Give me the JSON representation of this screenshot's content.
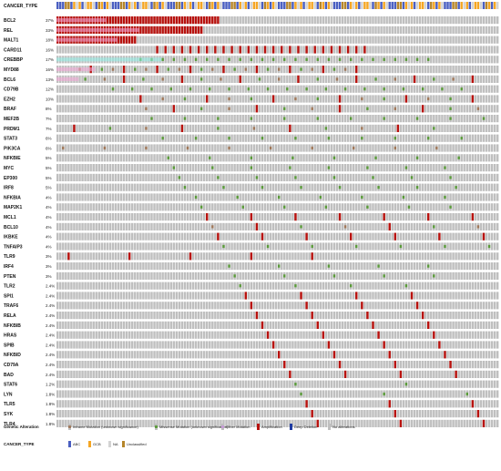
{
  "chart_data": {
    "type": "heatmap",
    "title": "",
    "annotation_track": {
      "label": "CANCER_TYPE",
      "categories": [
        "ABC",
        "GCB",
        "NA",
        "Unclassified"
      ],
      "pattern": "mixed ABC / GCB / NA / Unclassified per sample"
    },
    "n_samples": 160,
    "genes": [
      {
        "name": "BCL2",
        "pct": "37%",
        "altered": 59,
        "type": "amplification",
        "start": 0,
        "stride": 1
      },
      {
        "name": "REL",
        "pct": "33%",
        "altered": 53,
        "type": "amplification",
        "start": 0,
        "stride": 1
      },
      {
        "name": "MALT1",
        "pct": "18%",
        "altered": 29,
        "type": "amplification",
        "start": 0,
        "stride": 1
      },
      {
        "name": "CARD11",
        "pct": "16%",
        "altered": 26,
        "type": "mixed",
        "start": 36,
        "stride": 3
      },
      {
        "name": "CREBBP",
        "pct": "17%",
        "altered": 27,
        "type": "missense",
        "start": 30,
        "stride": 4
      },
      {
        "name": "MYD88",
        "pct": "16%",
        "altered": 26,
        "type": "mixed",
        "start": 8,
        "stride": 4
      },
      {
        "name": "BCL6",
        "pct": "13%",
        "altered": 21,
        "type": "mixed",
        "start": 10,
        "stride": 7
      },
      {
        "name": "CD79B",
        "pct": "12%",
        "altered": 19,
        "type": "missense",
        "start": 20,
        "stride": 7
      },
      {
        "name": "EZH2",
        "pct": "10%",
        "altered": 16,
        "type": "mixed",
        "start": 30,
        "stride": 8
      },
      {
        "name": "BRAF",
        "pct": "8%",
        "altered": 13,
        "type": "mixed",
        "start": 32,
        "stride": 10
      },
      {
        "name": "MEF2B",
        "pct": "7%",
        "altered": 11,
        "type": "missense",
        "start": 34,
        "stride": 12
      },
      {
        "name": "PRDM1",
        "pct": "7%",
        "altered": 11,
        "type": "mixed",
        "start": 6,
        "stride": 13
      },
      {
        "name": "STAT3",
        "pct": "6%",
        "altered": 10,
        "type": "missense",
        "start": 38,
        "stride": 12
      },
      {
        "name": "PIK3CA",
        "pct": "6%",
        "altered": 10,
        "type": "mixed",
        "start": 2,
        "stride": 15
      },
      {
        "name": "NFKBIE",
        "pct": "5%",
        "altered": 8,
        "type": "mixed",
        "start": 40,
        "stride": 15
      },
      {
        "name": "MYC",
        "pct": "5%",
        "altered": 8,
        "type": "missense",
        "start": 42,
        "stride": 14
      },
      {
        "name": "EP300",
        "pct": "5%",
        "altered": 8,
        "type": "missense",
        "start": 44,
        "stride": 14
      },
      {
        "name": "IRF8",
        "pct": "5%",
        "altered": 8,
        "type": "missense",
        "start": 46,
        "stride": 14
      },
      {
        "name": "NFKBIA",
        "pct": "4%",
        "altered": 7,
        "type": "missense",
        "start": 50,
        "stride": 15
      },
      {
        "name": "MAP2K1",
        "pct": "4%",
        "altered": 7,
        "type": "mixed",
        "start": 52,
        "stride": 15
      },
      {
        "name": "MCL1",
        "pct": "4%",
        "altered": 7,
        "type": "amplification",
        "start": 54,
        "stride": 16
      },
      {
        "name": "BCL10",
        "pct": "4%",
        "altered": 7,
        "type": "mixed",
        "start": 56,
        "stride": 16
      },
      {
        "name": "IKBKE",
        "pct": "4%",
        "altered": 7,
        "type": "amplification",
        "start": 58,
        "stride": 16
      },
      {
        "name": "TNFAIP3",
        "pct": "4%",
        "altered": 7,
        "type": "missense",
        "start": 60,
        "stride": 16
      },
      {
        "name": "TLR9",
        "pct": "3%",
        "altered": 5,
        "type": "amplification",
        "start": 4,
        "stride": 22
      },
      {
        "name": "IRF4",
        "pct": "3%",
        "altered": 5,
        "type": "missense",
        "start": 62,
        "stride": 18
      },
      {
        "name": "PTEN",
        "pct": "3%",
        "altered": 5,
        "type": "missense",
        "start": 64,
        "stride": 18
      },
      {
        "name": "TLR2",
        "pct": "2.4%",
        "altered": 4,
        "type": "missense",
        "start": 66,
        "stride": 20
      },
      {
        "name": "SPI1",
        "pct": "2.4%",
        "altered": 4,
        "type": "amplification",
        "start": 68,
        "stride": 20
      },
      {
        "name": "TRAF6",
        "pct": "2.4%",
        "altered": 4,
        "type": "amplification",
        "start": 70,
        "stride": 20
      },
      {
        "name": "RELA",
        "pct": "2.4%",
        "altered": 4,
        "type": "amplification",
        "start": 72,
        "stride": 20
      },
      {
        "name": "NFKBIB",
        "pct": "2.4%",
        "altered": 4,
        "type": "amplification",
        "start": 74,
        "stride": 20
      },
      {
        "name": "HRAS",
        "pct": "2.4%",
        "altered": 4,
        "type": "amplification",
        "start": 76,
        "stride": 20
      },
      {
        "name": "SPIB",
        "pct": "2.4%",
        "altered": 4,
        "type": "amplification",
        "start": 78,
        "stride": 20
      },
      {
        "name": "NFKBID",
        "pct": "2.4%",
        "altered": 4,
        "type": "amplification",
        "start": 80,
        "stride": 20
      },
      {
        "name": "CD79A",
        "pct": "2.4%",
        "altered": 4,
        "type": "amplification",
        "start": 82,
        "stride": 20
      },
      {
        "name": "BAD",
        "pct": "2.4%",
        "altered": 4,
        "type": "amplification",
        "start": 84,
        "stride": 20
      },
      {
        "name": "STAT6",
        "pct": "1.2%",
        "altered": 2,
        "type": "missense",
        "start": 86,
        "stride": 40
      },
      {
        "name": "LYN",
        "pct": "1.8%",
        "altered": 3,
        "type": "missense",
        "start": 88,
        "stride": 30
      },
      {
        "name": "TLR5",
        "pct": "1.8%",
        "altered": 3,
        "type": "amplification",
        "start": 90,
        "stride": 30
      },
      {
        "name": "SYK",
        "pct": "1.8%",
        "altered": 3,
        "type": "amplification",
        "start": 92,
        "stride": 30
      },
      {
        "name": "TLR4",
        "pct": "1.8%",
        "altered": 3,
        "type": "amplification",
        "start": 94,
        "stride": 30
      }
    ],
    "legend": {
      "alteration_title": "Genetic Alteration",
      "alteration_items": [
        {
          "label": "Inframe Mutation (unknown significance)",
          "color": "#a0785a",
          "kind": "inframe"
        },
        {
          "label": "Missense Mutation (unknown significance)",
          "color": "#5a9a3a",
          "kind": "missense"
        },
        {
          "label": "Other Mutation",
          "color": "#c79ad6",
          "kind": "other"
        },
        {
          "label": "Amplification",
          "color": "#b8120e",
          "kind": "amplification"
        },
        {
          "label": "Deep Deletion",
          "color": "#1f3ca3",
          "kind": "deletion"
        },
        {
          "label": "No alterations",
          "color": "#bfbfbf",
          "kind": "none"
        }
      ],
      "cancer_type_title": "CANCER_TYPE",
      "cancer_type_items": [
        {
          "label": "ABC",
          "color": "#4a5fc1"
        },
        {
          "label": "GCB",
          "color": "#f5a623"
        },
        {
          "label": "NA",
          "color": "#d3d3d3"
        },
        {
          "label": "Unclassified",
          "color": "#b5852a"
        }
      ]
    },
    "colors": {
      "cell_bg": "#bfbfbf",
      "amplification": "#b8120e",
      "missense": "#5a9a3a",
      "inframe": "#a0785a",
      "other": "#c79ad6",
      "deletion": "#1f3ca3",
      "highlight_pink": "#f4a6d7",
      "highlight_cyan": "#8ff0e8"
    }
  }
}
